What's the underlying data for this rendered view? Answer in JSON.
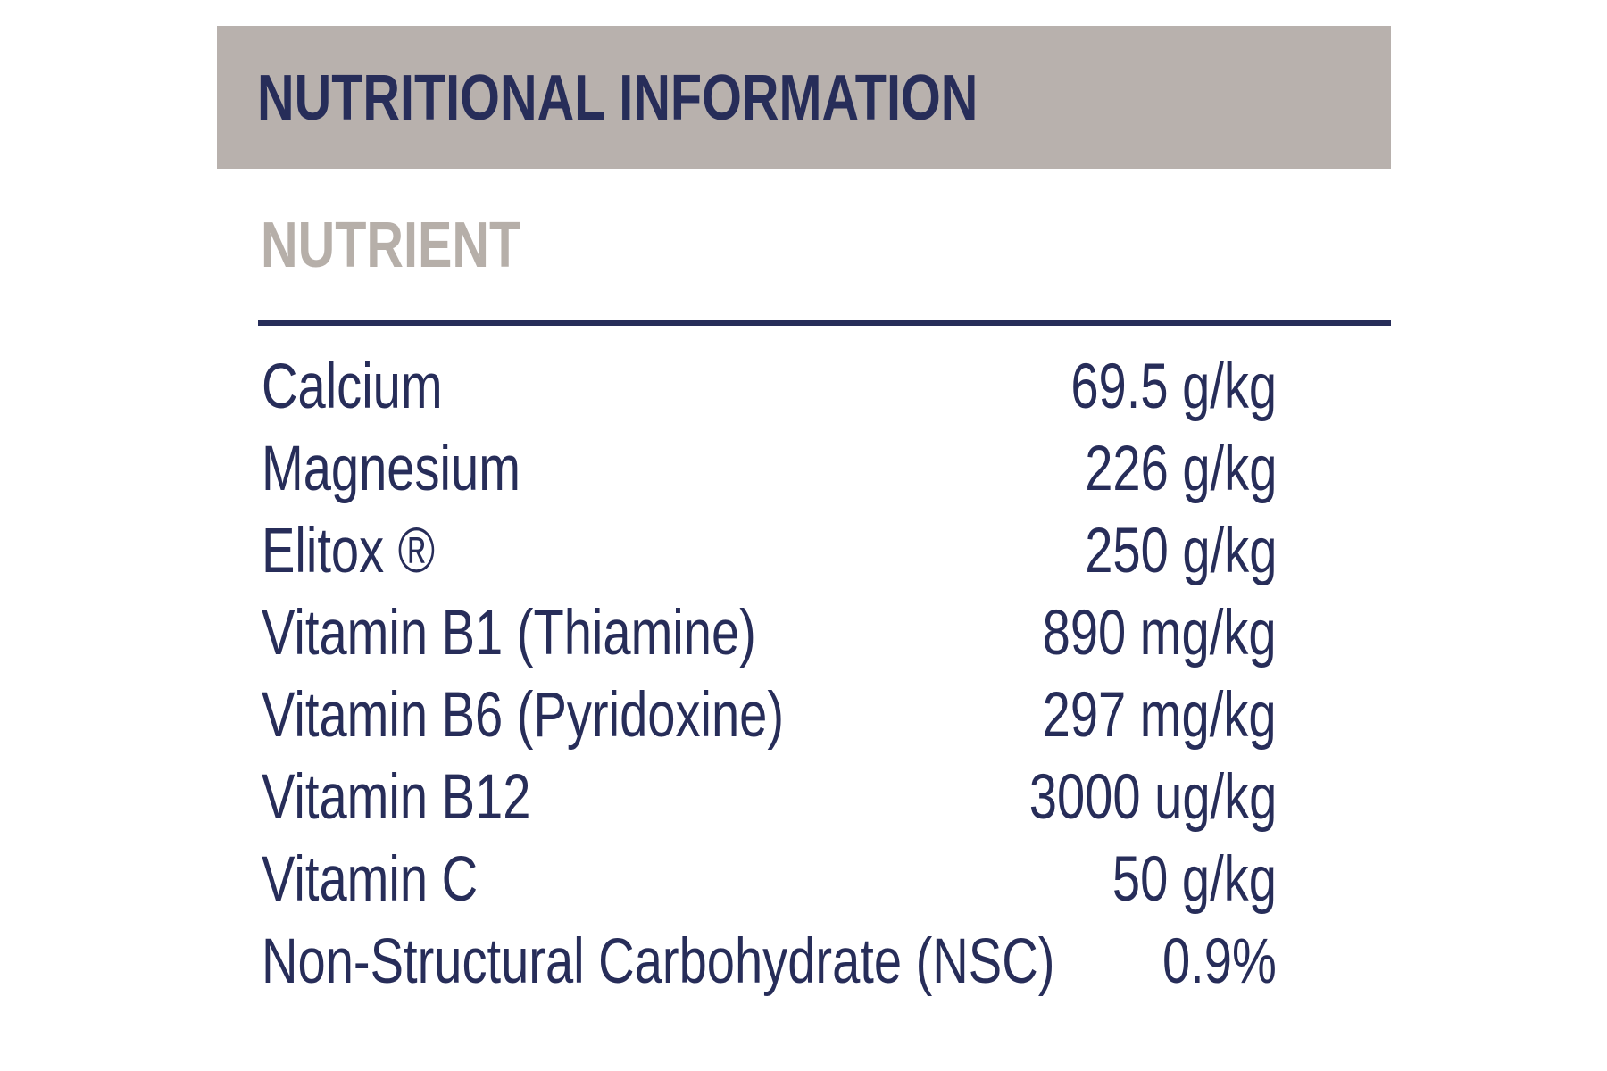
{
  "header": {
    "title": "NUTRITIONAL INFORMATION"
  },
  "table": {
    "column_header": "NUTRIENT",
    "rows": [
      {
        "label": "Calcium",
        "value": "69.5 g/kg"
      },
      {
        "label": "Magnesium",
        "value": "226 g/kg"
      },
      {
        "label": "Elitox ®",
        "value": "250 g/kg"
      },
      {
        "label": "Vitamin B1 (Thiamine)",
        "value": "890 mg/kg"
      },
      {
        "label": "Vitamin B6 (Pyridoxine)",
        "value": "297 mg/kg"
      },
      {
        "label": "Vitamin B12",
        "value": "3000 ug/kg"
      },
      {
        "label": "Vitamin C",
        "value": "50 g/kg"
      },
      {
        "label": "Non-Structural Carbohydrate (NSC)",
        "value": "0.9%"
      }
    ]
  },
  "colors": {
    "band_background": "#b8b1ad",
    "navy_text": "#272d59",
    "column_header_gray": "#b6afa9",
    "page_background": "#ffffff"
  }
}
